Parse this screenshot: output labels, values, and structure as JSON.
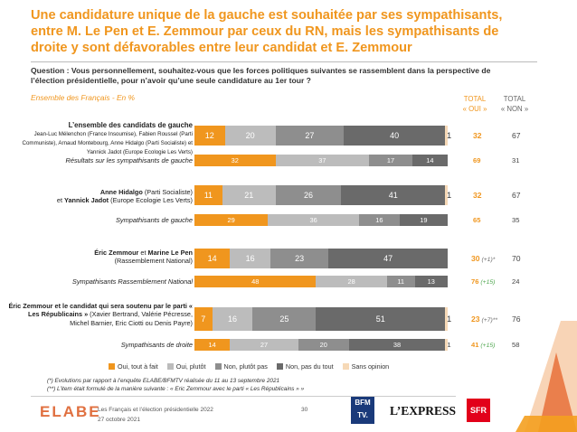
{
  "title": "Une candidature unique de la gauche est souhaitée par ses sympathisants, entre M. Le Pen et E. Zemmour par ceux du RN, mais les sympathisants de droite y sont défavorables entre leur candidat et E. Zemmour",
  "question": "Question : Vous personnellement, souhaitez-vous que les forces politiques suivantes se rassemblent dans la perspective de l’élection présidentielle, pour n’avoir qu’une seule candidature au 1er tour ?",
  "population": "Ensemble des Français - En %",
  "col_oui_1": "TOTAL",
  "col_oui_2": "« OUI »",
  "col_non_1": "TOTAL",
  "col_non_2": "« NON »",
  "colors": {
    "oui_tout": "#f0961e",
    "oui_plutot": "#bcbcbc",
    "non_plutot": "#8e8e8e",
    "non_tout": "#6a6a6a",
    "sans": "#f6d9b7",
    "accent": "#f0961e"
  },
  "chart_data": {
    "type": "bar",
    "orientation": "horizontal-stacked",
    "series": [
      "Oui, tout à fait",
      "Oui, plutôt",
      "Non, plutôt pas",
      "Non, pas du tout",
      "Sans opinion"
    ],
    "groups": [
      {
        "main": {
          "label_bold": "L’ensemble des candidats de gauche",
          "label_rest": "Jean-Luc Mélenchon (France Insoumise), Fabien Roussel (Parti Communiste), Arnaud Montebourg, Anne Hidalgo (Parti Socialiste) et Yannick Jadot (Europe Ecologie Les Verts)",
          "values": [
            12,
            20,
            27,
            40,
            1
          ],
          "total_oui": "32",
          "delta": "",
          "total_non": "67"
        },
        "sub": {
          "label": "Résultats sur les sympathisants de gauche",
          "values": [
            32,
            37,
            17,
            14,
            0
          ],
          "total_oui": "69",
          "delta": "",
          "total_non": "31"
        }
      },
      {
        "main": {
          "label_bold": "Anne Hidalgo",
          "label_rest": " (Parti Socialiste)",
          "label_line2_pre": "et ",
          "label_line2_bold": "Yannick Jadot",
          "label_line2_rest": " (Europe Ecologie Les Verts)",
          "values": [
            11,
            21,
            26,
            41,
            1
          ],
          "total_oui": "32",
          "delta": "",
          "total_non": "67"
        },
        "sub": {
          "label": "Sympathisants de gauche",
          "values": [
            29,
            36,
            16,
            19,
            0
          ],
          "total_oui": "65",
          "delta": "",
          "total_non": "35"
        }
      },
      {
        "main": {
          "label_bold": "Éric Zemmour",
          "label_rest": " et ",
          "label_bold2": "Marine Le Pen",
          "label_line2": "(Rassemblement National)",
          "values": [
            14,
            16,
            23,
            47,
            0
          ],
          "total_oui": "30",
          "delta": "(+1)*",
          "total_non": "70"
        },
        "sub": {
          "label": "Sympathisants Rassemblement National",
          "values": [
            48,
            28,
            11,
            13,
            0
          ],
          "total_oui": "76",
          "delta": "(+15)",
          "total_non": "24"
        }
      },
      {
        "main": {
          "label_bold": "Éric Zemmour et le candidat qui sera soutenu par le parti « Les Républicains »",
          "label_rest": " (Xavier Bertrand, Valérie Pécresse, Michel Barnier, Eric Ciotti ou Denis Payre)",
          "values": [
            7,
            16,
            25,
            51,
            1
          ],
          "total_oui": "23",
          "delta": "(+7)**",
          "total_non": "76"
        },
        "sub": {
          "label": "Sympathisants de droite",
          "values": [
            14,
            27,
            20,
            38,
            1
          ],
          "total_oui": "41",
          "delta": "(+15)",
          "total_non": "58"
        }
      }
    ]
  },
  "legend": [
    "Oui, tout à fait",
    "Oui, plutôt",
    "Non, plutôt pas",
    "Non, pas du tout",
    "Sans opinion"
  ],
  "note1": "(*) Evolutions par rapport à l’enquête ELABE/BFMTV réalisée du 11 au 13 septembre 2021",
  "note2": "(**) L’item était formulé de la manière suivante : « Eric Zemmour avec le parti « Les Républicains » »",
  "footer_brand": "ELABE",
  "footer_study": "Les Français et l’élection présidentielle 2022",
  "footer_date": "27 octobre 2021",
  "page_number": "30",
  "logo_bfm_1": "BFM",
  "logo_bfm_2": "TV.",
  "logo_lexpress": "L’EXPRESS",
  "logo_sfr": "SFR"
}
